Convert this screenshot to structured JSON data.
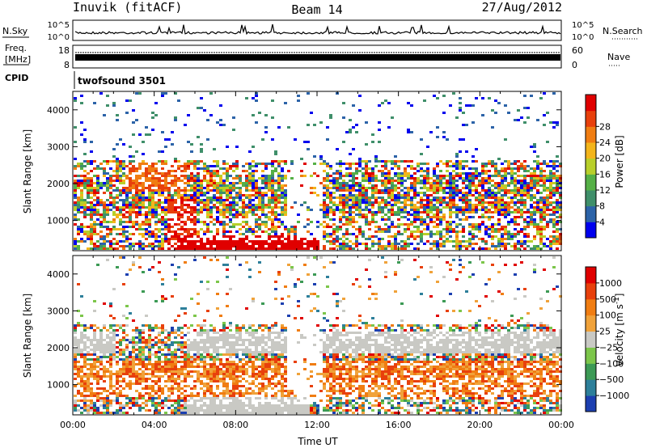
{
  "header": {
    "station": "Inuvik (fitACF)",
    "beam": "Beam 14",
    "date": "27/Aug/2012"
  },
  "nsky_panel": {
    "label_left": "N.Sky",
    "label_right": "N.Search",
    "ticks_left": [
      "10^5",
      "10^0"
    ],
    "ticks_right": [
      "10^5",
      "10^0"
    ]
  },
  "freq_panel": {
    "label_left_line1": "Freq.",
    "label_left_line2": "[MHz]",
    "label_right": "Nave",
    "ticks_left": [
      "18",
      "8"
    ],
    "ticks_right": [
      "60",
      "0"
    ]
  },
  "cpid_panel": {
    "label": "CPID",
    "program": "twofsound 3501"
  },
  "chart_data": [
    {
      "type": "heatmap",
      "title": "",
      "ylabel": "Slant Range [km]",
      "xlabel": "",
      "xlim": [
        "00:00",
        "24:00"
      ],
      "ylim": [
        180,
        4500
      ],
      "yticks": [
        "1000",
        "2000",
        "3000",
        "4000"
      ],
      "colorbar": {
        "label": "Power [dB]",
        "ticks": [
          "4",
          "8",
          "12",
          "16",
          "20",
          "24",
          "28"
        ],
        "colors": [
          "#0000ee",
          "#2c63a8",
          "#3f8f6a",
          "#55b046",
          "#b8cf2a",
          "#f3b51b",
          "#f07d12",
          "#e8400c",
          "#e00000"
        ]
      }
    },
    {
      "type": "heatmap",
      "title": "",
      "ylabel": "Slant Range [km]",
      "xlabel": "Time UT",
      "xlim": [
        "00:00",
        "24:00"
      ],
      "ylim": [
        180,
        4500
      ],
      "xticks": [
        "00:00",
        "04:00",
        "08:00",
        "12:00",
        "16:00",
        "20:00",
        "00:00"
      ],
      "yticks": [
        "1000",
        "2000",
        "3000",
        "4000"
      ],
      "colorbar": {
        "label": "Velocity [m s^-1]",
        "ticks": [
          "1000",
          "500",
          "100",
          "25",
          "−25",
          "−100",
          "−500",
          "−1000"
        ],
        "colors": [
          "#1c3fb0",
          "#2d7f9a",
          "#3c9a55",
          "#7cc64a",
          "#c9c9c4",
          "#f0a23a",
          "#f07d12",
          "#e8400c",
          "#e00000"
        ]
      }
    }
  ]
}
